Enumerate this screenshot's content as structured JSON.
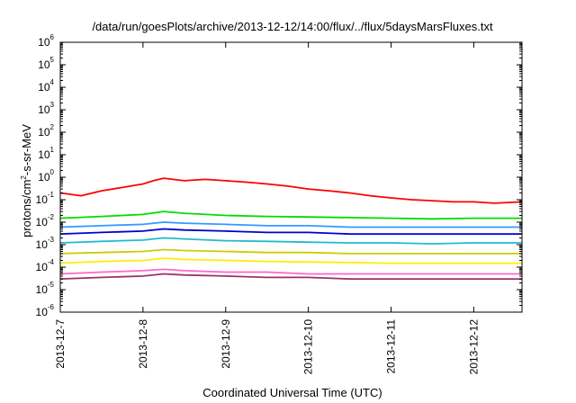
{
  "chart_data": {
    "type": "line",
    "title": "/data/run/goesPlots/archive/2013-12-12/14:00/flux/../flux/5daysMarsFluxes.txt",
    "xlabel": "Coordinated Universal Time (UTC)",
    "ylabel_prefix": "protons/cm",
    "ylabel_exponent": "2",
    "ylabel_suffix": "-s-sr-MeV",
    "y_scale": "log",
    "ylim": [
      1e-06,
      1000000.0
    ],
    "xlim": [
      "2013-12-07T00:00",
      "2013-12-12T14:00"
    ],
    "grid": false,
    "legend": "none",
    "y_ticks": [
      {
        "exp": -6,
        "base": "10",
        "sup": "-6"
      },
      {
        "exp": -5,
        "base": "10",
        "sup": "-5"
      },
      {
        "exp": -4,
        "base": "10",
        "sup": "-4"
      },
      {
        "exp": -3,
        "base": "10",
        "sup": "-3"
      },
      {
        "exp": -2,
        "base": "10",
        "sup": "-2"
      },
      {
        "exp": -1,
        "base": "10",
        "sup": "-1"
      },
      {
        "exp": 0,
        "base": "10",
        "sup": "0"
      },
      {
        "exp": 1,
        "base": "10",
        "sup": "1"
      },
      {
        "exp": 2,
        "base": "10",
        "sup": "2"
      },
      {
        "exp": 3,
        "base": "10",
        "sup": "3"
      },
      {
        "exp": 4,
        "base": "10",
        "sup": "4"
      },
      {
        "exp": 5,
        "base": "10",
        "sup": "5"
      },
      {
        "exp": 6,
        "base": "10",
        "sup": "6"
      }
    ],
    "x_ticks": [
      {
        "label": "2013-12-7",
        "x": "2013-12-07T00:00"
      },
      {
        "label": "2013-12-8",
        "x": "2013-12-08T00:00"
      },
      {
        "label": "2013-12-9",
        "x": "2013-12-09T00:00"
      },
      {
        "label": "2013-12-10",
        "x": "2013-12-10T00:00"
      },
      {
        "label": "2013-12-11",
        "x": "2013-12-11T00:00"
      },
      {
        "label": "2013-12-12",
        "x": "2013-12-12T00:00"
      }
    ],
    "series": [
      {
        "color": "#ff0000",
        "points": [
          [
            "2013-12-07T00:00",
            0.2
          ],
          [
            "2013-12-07T06:00",
            0.15
          ],
          [
            "2013-12-07T12:00",
            0.25
          ],
          [
            "2013-12-07T18:00",
            0.35
          ],
          [
            "2013-12-08T00:00",
            0.5
          ],
          [
            "2013-12-08T03:00",
            0.7
          ],
          [
            "2013-12-08T06:00",
            0.9
          ],
          [
            "2013-12-08T12:00",
            0.7
          ],
          [
            "2013-12-08T18:00",
            0.8
          ],
          [
            "2013-12-09T00:00",
            0.7
          ],
          [
            "2013-12-09T06:00",
            0.6
          ],
          [
            "2013-12-09T12:00",
            0.5
          ],
          [
            "2013-12-09T18:00",
            0.4
          ],
          [
            "2013-12-10T00:00",
            0.3
          ],
          [
            "2013-12-10T06:00",
            0.25
          ],
          [
            "2013-12-10T12:00",
            0.2
          ],
          [
            "2013-12-10T18:00",
            0.15
          ],
          [
            "2013-12-11T00:00",
            0.12
          ],
          [
            "2013-12-11T06:00",
            0.1
          ],
          [
            "2013-12-11T12:00",
            0.09
          ],
          [
            "2013-12-11T18:00",
            0.08
          ],
          [
            "2013-12-12T00:00",
            0.08
          ],
          [
            "2013-12-12T06:00",
            0.07
          ],
          [
            "2013-12-12T14:00",
            0.08
          ]
        ]
      },
      {
        "color": "#00dd00",
        "points": [
          [
            "2013-12-07T00:00",
            0.015
          ],
          [
            "2013-12-07T12:00",
            0.018
          ],
          [
            "2013-12-08T00:00",
            0.022
          ],
          [
            "2013-12-08T06:00",
            0.03
          ],
          [
            "2013-12-08T12:00",
            0.025
          ],
          [
            "2013-12-09T00:00",
            0.02
          ],
          [
            "2013-12-09T12:00",
            0.018
          ],
          [
            "2013-12-10T00:00",
            0.017
          ],
          [
            "2013-12-10T12:00",
            0.016
          ],
          [
            "2013-12-11T00:00",
            0.015
          ],
          [
            "2013-12-11T12:00",
            0.014
          ],
          [
            "2013-12-12T00:00",
            0.015
          ],
          [
            "2013-12-12T14:00",
            0.015
          ]
        ]
      },
      {
        "color": "#3399ff",
        "points": [
          [
            "2013-12-07T00:00",
            0.006
          ],
          [
            "2013-12-07T12:00",
            0.007
          ],
          [
            "2013-12-08T00:00",
            0.008
          ],
          [
            "2013-12-08T06:00",
            0.01
          ],
          [
            "2013-12-08T12:00",
            0.009
          ],
          [
            "2013-12-09T00:00",
            0.008
          ],
          [
            "2013-12-09T12:00",
            0.007
          ],
          [
            "2013-12-10T00:00",
            0.007
          ],
          [
            "2013-12-10T12:00",
            0.006
          ],
          [
            "2013-12-11T00:00",
            0.006
          ],
          [
            "2013-12-11T12:00",
            0.006
          ],
          [
            "2013-12-12T00:00",
            0.006
          ],
          [
            "2013-12-12T14:00",
            0.006
          ]
        ]
      },
      {
        "color": "#0000cc",
        "points": [
          [
            "2013-12-07T00:00",
            0.003
          ],
          [
            "2013-12-07T12:00",
            0.0035
          ],
          [
            "2013-12-08T00:00",
            0.004
          ],
          [
            "2013-12-08T06:00",
            0.005
          ],
          [
            "2013-12-08T12:00",
            0.0045
          ],
          [
            "2013-12-09T00:00",
            0.004
          ],
          [
            "2013-12-09T12:00",
            0.0035
          ],
          [
            "2013-12-10T00:00",
            0.0035
          ],
          [
            "2013-12-10T12:00",
            0.003
          ],
          [
            "2013-12-11T00:00",
            0.003
          ],
          [
            "2013-12-11T12:00",
            0.003
          ],
          [
            "2013-12-12T00:00",
            0.003
          ],
          [
            "2013-12-12T14:00",
            0.003
          ]
        ]
      },
      {
        "color": "#22bbcc",
        "points": [
          [
            "2013-12-07T00:00",
            0.0012
          ],
          [
            "2013-12-07T12:00",
            0.0014
          ],
          [
            "2013-12-08T00:00",
            0.0016
          ],
          [
            "2013-12-08T06:00",
            0.002
          ],
          [
            "2013-12-08T12:00",
            0.0018
          ],
          [
            "2013-12-09T00:00",
            0.0015
          ],
          [
            "2013-12-09T12:00",
            0.0014
          ],
          [
            "2013-12-10T00:00",
            0.0013
          ],
          [
            "2013-12-10T12:00",
            0.0012
          ],
          [
            "2013-12-11T00:00",
            0.0012
          ],
          [
            "2013-12-11T12:00",
            0.0011
          ],
          [
            "2013-12-12T00:00",
            0.0012
          ],
          [
            "2013-12-12T14:00",
            0.0012
          ]
        ]
      },
      {
        "color": "#cccc00",
        "points": [
          [
            "2013-12-07T00:00",
            0.0004
          ],
          [
            "2013-12-07T12:00",
            0.00045
          ],
          [
            "2013-12-08T00:00",
            0.0005
          ],
          [
            "2013-12-08T06:00",
            0.0006
          ],
          [
            "2013-12-08T12:00",
            0.00055
          ],
          [
            "2013-12-09T00:00",
            0.0005
          ],
          [
            "2013-12-09T12:00",
            0.00045
          ],
          [
            "2013-12-10T00:00",
            0.00045
          ],
          [
            "2013-12-10T12:00",
            0.0004
          ],
          [
            "2013-12-11T00:00",
            0.0004
          ],
          [
            "2013-12-11T12:00",
            0.0004
          ],
          [
            "2013-12-12T00:00",
            0.0004
          ],
          [
            "2013-12-12T14:00",
            0.0004
          ]
        ]
      },
      {
        "color": "#ffee00",
        "points": [
          [
            "2013-12-07T00:00",
            0.00015
          ],
          [
            "2013-12-07T12:00",
            0.00018
          ],
          [
            "2013-12-08T00:00",
            0.0002
          ],
          [
            "2013-12-08T06:00",
            0.00025
          ],
          [
            "2013-12-08T12:00",
            0.00022
          ],
          [
            "2013-12-09T00:00",
            0.0002
          ],
          [
            "2013-12-09T12:00",
            0.00018
          ],
          [
            "2013-12-10T00:00",
            0.00017
          ],
          [
            "2013-12-10T12:00",
            0.00016
          ],
          [
            "2013-12-11T00:00",
            0.00015
          ],
          [
            "2013-12-11T12:00",
            0.00015
          ],
          [
            "2013-12-12T00:00",
            0.00015
          ],
          [
            "2013-12-12T14:00",
            0.00015
          ]
        ]
      },
      {
        "color": "#ff66cc",
        "points": [
          [
            "2013-12-07T00:00",
            5e-05
          ],
          [
            "2013-12-07T12:00",
            6e-05
          ],
          [
            "2013-12-08T00:00",
            7e-05
          ],
          [
            "2013-12-08T06:00",
            8e-05
          ],
          [
            "2013-12-08T12:00",
            7e-05
          ],
          [
            "2013-12-09T00:00",
            6e-05
          ],
          [
            "2013-12-09T12:00",
            6e-05
          ],
          [
            "2013-12-10T00:00",
            5e-05
          ],
          [
            "2013-12-10T12:00",
            5e-05
          ],
          [
            "2013-12-11T00:00",
            5e-05
          ],
          [
            "2013-12-11T12:00",
            5e-05
          ],
          [
            "2013-12-12T00:00",
            5e-05
          ],
          [
            "2013-12-12T14:00",
            5e-05
          ]
        ]
      },
      {
        "color": "#993366",
        "points": [
          [
            "2013-12-07T00:00",
            3e-05
          ],
          [
            "2013-12-07T12:00",
            3.5e-05
          ],
          [
            "2013-12-08T00:00",
            4e-05
          ],
          [
            "2013-12-08T06:00",
            5e-05
          ],
          [
            "2013-12-08T12:00",
            4.5e-05
          ],
          [
            "2013-12-09T00:00",
            4e-05
          ],
          [
            "2013-12-09T12:00",
            3.5e-05
          ],
          [
            "2013-12-10T00:00",
            3.5e-05
          ],
          [
            "2013-12-10T12:00",
            3e-05
          ],
          [
            "2013-12-11T00:00",
            3e-05
          ],
          [
            "2013-12-11T12:00",
            3e-05
          ],
          [
            "2013-12-12T00:00",
            3e-05
          ],
          [
            "2013-12-12T14:00",
            3e-05
          ]
        ]
      }
    ]
  }
}
